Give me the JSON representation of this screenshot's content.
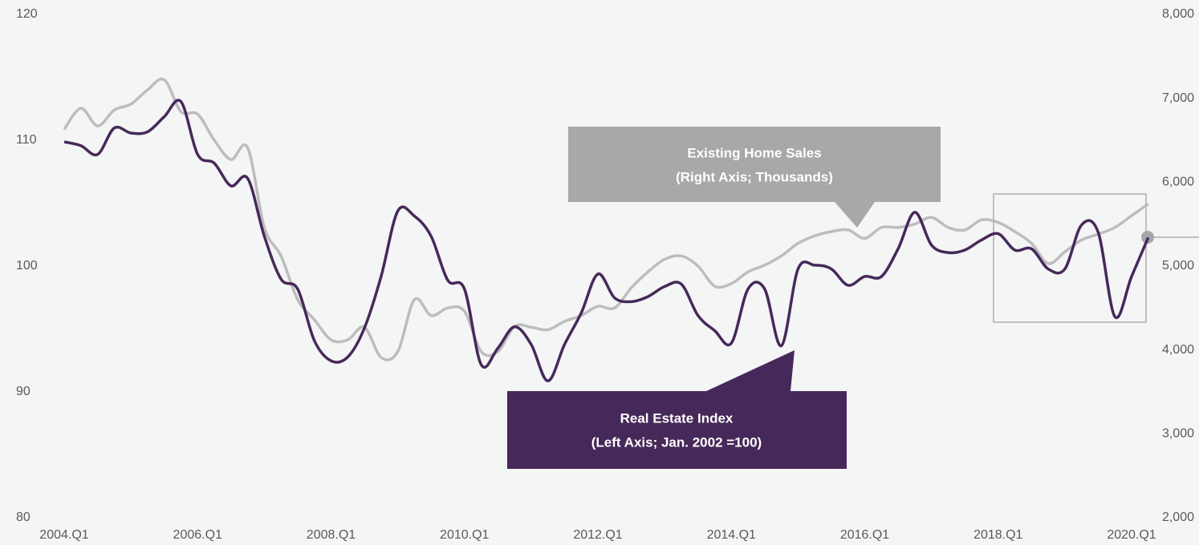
{
  "chart_data": {
    "type": "line",
    "x": [
      2004,
      2004.25,
      2004.5,
      2004.75,
      2005,
      2005.25,
      2005.5,
      2005.75,
      2006,
      2006.25,
      2006.5,
      2006.75,
      2007,
      2007.25,
      2007.5,
      2007.75,
      2008,
      2008.25,
      2008.5,
      2008.75,
      2009,
      2009.25,
      2009.5,
      2009.75,
      2010,
      2010.25,
      2010.5,
      2010.75,
      2011,
      2011.25,
      2011.5,
      2011.75,
      2012,
      2012.25,
      2012.5,
      2012.75,
      2013,
      2013.25,
      2013.5,
      2013.75,
      2014,
      2014.25,
      2014.5,
      2014.75,
      2015,
      2015.25,
      2015.5,
      2015.75,
      2016,
      2016.25,
      2016.5,
      2016.75,
      2017,
      2017.25,
      2017.5,
      2017.75,
      2018,
      2018.25,
      2018.5,
      2018.75,
      2019,
      2019.25,
      2019.5,
      2019.75,
      2020,
      2020.25
    ],
    "series": [
      {
        "name": "Real Estate Index",
        "color": "#46295a",
        "axis": "y",
        "values": [
          110,
          109.7,
          109.0,
          111.1,
          110.7,
          110.8,
          112.0,
          113.2,
          109.0,
          108.3,
          106.5,
          107.1,
          102.5,
          99.1,
          98.3,
          94.2,
          92.6,
          92.9,
          95.2,
          99.3,
          104.5,
          104.1,
          102.5,
          99.0,
          98.3,
          92.3,
          93.6,
          95.3,
          93.9,
          91.0,
          93.9,
          96.4,
          99.5,
          97.6,
          97.3,
          97.7,
          98.5,
          98.7,
          96.2,
          95.0,
          94.0,
          98.3,
          98.3,
          93.8,
          99.9,
          100.2,
          99.9,
          98.6,
          99.3,
          99.3,
          101.5,
          104.4,
          101.8,
          101.2,
          101.4,
          102.2,
          102.7,
          101.4,
          101.5,
          99.9,
          99.9,
          103.4,
          102.8,
          96.1,
          99.3,
          102.4
        ]
      },
      {
        "name": "Existing Home Sales",
        "color": "#bdbdbd",
        "axis": "y2",
        "values": [
          6650,
          6900,
          6690,
          6880,
          6950,
          7120,
          7240,
          6860,
          6830,
          6520,
          6290,
          6430,
          5480,
          5140,
          4620,
          4380,
          4140,
          4140,
          4290,
          3930,
          4000,
          4620,
          4430,
          4520,
          4480,
          4000,
          4000,
          4300,
          4290,
          4260,
          4360,
          4430,
          4540,
          4520,
          4760,
          4950,
          5100,
          5140,
          5020,
          4780,
          4810,
          4950,
          5030,
          5140,
          5290,
          5380,
          5430,
          5450,
          5350,
          5480,
          5480,
          5520,
          5600,
          5480,
          5450,
          5570,
          5540,
          5430,
          5290,
          5050,
          5190,
          5330,
          5400,
          5480,
          5620,
          5760
        ]
      }
    ],
    "xlim": [
      2004,
      2020.25
    ],
    "xticks": [
      {
        "value": 2004,
        "label": "2004.Q1"
      },
      {
        "value": 2006,
        "label": "2006.Q1"
      },
      {
        "value": 2008,
        "label": "2008.Q1"
      },
      {
        "value": 2010,
        "label": "2010.Q1"
      },
      {
        "value": 2012,
        "label": "2012.Q1"
      },
      {
        "value": 2014,
        "label": "2014.Q1"
      },
      {
        "value": 2016,
        "label": "2016.Q1"
      },
      {
        "value": 2018,
        "label": "2018.Q1"
      },
      {
        "value": 2020,
        "label": "2020.Q1"
      }
    ],
    "ylim": [
      80,
      120
    ],
    "yticks": [
      80,
      90,
      100,
      110,
      120
    ],
    "y2lim": [
      2000,
      8000
    ],
    "y2ticks": [
      {
        "value": 2000,
        "label": "2,000"
      },
      {
        "value": 3000,
        "label": "3,000"
      },
      {
        "value": 4000,
        "label": "4,000"
      },
      {
        "value": 5000,
        "label": "5,000"
      },
      {
        "value": 6000,
        "label": "6,000"
      },
      {
        "value": 7000,
        "label": "7,000"
      },
      {
        "value": 8000,
        "label": "8,000"
      }
    ],
    "annotations": [
      {
        "lines": [
          "Existing Home Sales",
          "(Right Axis; Thousands)"
        ]
      },
      {
        "lines": [
          "Real Estate Index",
          "(Left Axis; Jan. 2002 =100)"
        ]
      }
    ]
  }
}
